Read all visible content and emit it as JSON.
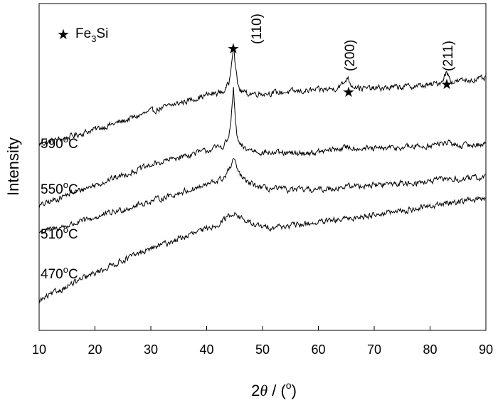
{
  "chart_data": {
    "type": "line",
    "xlabel": "2θ / (°)",
    "xlabel_main": "2",
    "xlabel_theta": "θ",
    "xlabel_rest": " / (",
    "xlabel_unit": "o",
    "xlabel_close": ")",
    "ylabel": "Intensity",
    "xlim": [
      10,
      90
    ],
    "ylim": [
      0,
      100
    ],
    "x_ticks": [
      "10",
      "20",
      "30",
      "40",
      "50",
      "60",
      "70",
      "80",
      "90"
    ],
    "y_ticks_shown": false,
    "grid": false,
    "legend": {
      "placement": "top-left",
      "symbol": "star",
      "text_main": "Fe",
      "text_sub": "3",
      "text_end": "Si"
    },
    "annotations": [
      {
        "label": "(110)",
        "x": 44.8
      },
      {
        "label": "(200)",
        "x": 65.2
      },
      {
        "label": "(211)",
        "x": 82.9
      }
    ],
    "series": [
      {
        "name": "590°C",
        "label_value": "590",
        "label_unit_sup": "o",
        "label_unit": "C",
        "x": [
          10,
          15,
          20,
          25,
          30,
          35,
          40,
          43,
          44,
          44.5,
          44.8,
          45.1,
          45.5,
          46,
          47,
          50,
          55,
          60,
          63,
          64.5,
          65.2,
          66,
          68,
          70,
          75,
          80,
          82,
          82.9,
          84,
          86,
          90
        ],
        "y": [
          57,
          59,
          61.5,
          64,
          67,
          69.5,
          72,
          73,
          75.5,
          83,
          88,
          82,
          75.5,
          73.5,
          72.5,
          72.5,
          73,
          73.5,
          74,
          75.5,
          77.5,
          75,
          74,
          74,
          74.5,
          75,
          76,
          79,
          76,
          76.5,
          77
        ]
      },
      {
        "name": "550°C",
        "label_value": "550",
        "label_unit_sup": "o",
        "label_unit": "C",
        "x": [
          10,
          15,
          20,
          25,
          30,
          35,
          40,
          43,
          44,
          44.5,
          44.8,
          45.1,
          45.5,
          46,
          47,
          50,
          55,
          60,
          65.2,
          70,
          75,
          80,
          82.9,
          85,
          90
        ],
        "y": [
          38,
          41.5,
          44.5,
          47.5,
          50.5,
          53,
          55,
          56.5,
          59,
          67,
          74,
          65,
          58.5,
          56.5,
          55.5,
          54.5,
          54,
          54.5,
          56,
          55.5,
          56,
          56.5,
          57.5,
          56.5,
          57
        ]
      },
      {
        "name": "510°C",
        "label_value": "510",
        "label_unit_sup": "o",
        "label_unit": "C",
        "x": [
          10,
          15,
          20,
          25,
          30,
          35,
          40,
          43,
          44.3,
          44.8,
          45.3,
          46,
          47,
          50,
          55,
          60,
          65,
          70,
          75,
          80,
          83,
          85,
          90
        ],
        "y": [
          30,
          32,
          34.5,
          37,
          39.5,
          42,
          44.5,
          46.5,
          50,
          52.5,
          50,
          47.5,
          45.5,
          43.5,
          43,
          43,
          44,
          44.5,
          45,
          45.5,
          46.5,
          46,
          47
        ]
      },
      {
        "name": "470°C",
        "label_value": "470",
        "label_unit_sup": "o",
        "label_unit": "C",
        "x": [
          10,
          15,
          20,
          25,
          30,
          35,
          40,
          42,
          43.5,
          44.8,
          46,
          47.5,
          50,
          55,
          60,
          65,
          70,
          75,
          80,
          85,
          90
        ],
        "y": [
          9,
          13.5,
          17.5,
          21.5,
          25,
          28,
          31,
          32.5,
          34.5,
          36,
          34.5,
          33,
          31.5,
          32,
          33,
          34,
          35.5,
          36.5,
          38,
          39.5,
          40.5
        ]
      }
    ]
  }
}
